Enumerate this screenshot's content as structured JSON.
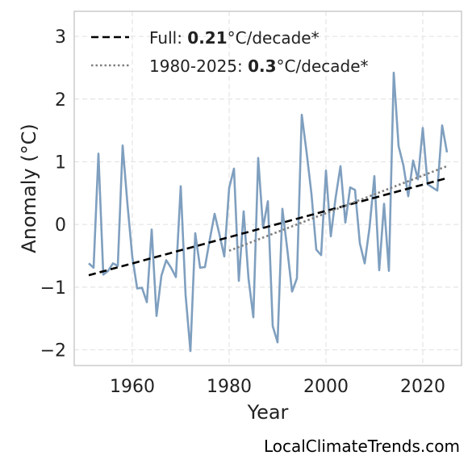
{
  "chart_data": {
    "type": "line",
    "xlabel": "Year",
    "ylabel": "Anomaly (°C)",
    "xlim": [
      1948,
      2028
    ],
    "ylim": [
      -2.25,
      3.4
    ],
    "xticks": [
      1960,
      1980,
      2000,
      2020
    ],
    "yticks": [
      -2,
      -1,
      0,
      1,
      2,
      3
    ],
    "xtick_labels": [
      "1960",
      "1980",
      "2000",
      "2020"
    ],
    "ytick_labels": [
      "−2",
      "−1",
      "0",
      "1",
      "2",
      "3"
    ],
    "grid": true,
    "legend_position": "top-left",
    "series": [
      {
        "color": "#7f9fbf",
        "style": "solid",
        "x": [
          1951,
          1952,
          1953,
          1954,
          1955,
          1956,
          1957,
          1958,
          1959,
          1960,
          1961,
          1962,
          1963,
          1964,
          1965,
          1966,
          1967,
          1968,
          1969,
          1970,
          1971,
          1972,
          1973,
          1974,
          1975,
          1976,
          1977,
          1978,
          1979,
          1980,
          1981,
          1982,
          1983,
          1984,
          1985,
          1986,
          1987,
          1988,
          1989,
          1990,
          1991,
          1992,
          1993,
          1994,
          1995,
          1996,
          1997,
          1998,
          1999,
          2000,
          2001,
          2002,
          2003,
          2004,
          2005,
          2006,
          2007,
          2008,
          2009,
          2010,
          2011,
          2012,
          2013,
          2014,
          2015,
          2016,
          2017,
          2018,
          2019,
          2020,
          2021,
          2022,
          2023,
          2024,
          2025
        ],
        "y": [
          -0.62,
          -0.69,
          1.13,
          -0.8,
          -0.74,
          -0.62,
          -0.66,
          1.26,
          0.32,
          -0.52,
          -1.02,
          -1.01,
          -1.24,
          -0.08,
          -1.46,
          -0.82,
          -0.57,
          -0.69,
          -0.84,
          0.61,
          -1.12,
          -2.02,
          -0.14,
          -0.69,
          -0.68,
          -0.24,
          0.17,
          -0.16,
          -0.51,
          0.58,
          0.89,
          -0.9,
          0.21,
          -0.86,
          -1.48,
          1.06,
          -0.05,
          0.37,
          -1.62,
          -1.88,
          0.25,
          -0.39,
          -1.07,
          -0.86,
          1.75,
          1.15,
          0.49,
          -0.4,
          -0.49,
          0.86,
          -0.19,
          0.43,
          0.93,
          0.03,
          0.59,
          0.55,
          -0.3,
          -0.62,
          -0.05,
          0.77,
          -0.73,
          0.33,
          -0.74,
          2.42,
          1.25,
          0.94,
          0.45,
          1.02,
          0.72,
          1.54,
          0.64,
          0.59,
          0.54,
          1.58,
          1.15
        ]
      },
      {
        "color": "#000000",
        "style": "dashed",
        "x": [
          1951,
          2025
        ],
        "y": [
          -0.81,
          0.74
        ]
      },
      {
        "color": "#808080",
        "style": "dotted",
        "x": [
          1980,
          2025
        ],
        "y": [
          -0.42,
          0.93
        ]
      }
    ],
    "legend": [
      {
        "prefix": "Full: ",
        "value": "0.21",
        "suffix": "°C/decade*",
        "style": "dashed",
        "color": "#000000"
      },
      {
        "prefix": "1980-2025: ",
        "value": "0.3",
        "suffix": "°C/decade*",
        "style": "dotted",
        "color": "#808080"
      }
    ]
  },
  "credit": "LocalClimateTrends.com"
}
